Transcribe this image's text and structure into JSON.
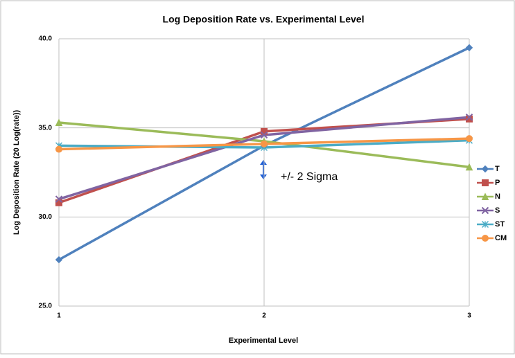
{
  "chart_data": {
    "type": "line",
    "title": "Log Deposition Rate vs. Experimental Level",
    "x_label": "Experimental Level",
    "y_label": "Log Deposition Rate (20 Log(rate))",
    "annotation": "+/- 2 Sigma",
    "x": [
      1,
      2,
      3
    ],
    "xlim": [
      1,
      3
    ],
    "xticks": [
      1,
      2,
      3
    ],
    "ylim": [
      25,
      40
    ],
    "yticks": [
      {
        "value": 25,
        "label": "25.0"
      },
      {
        "value": 30,
        "label": "30.0"
      },
      {
        "value": 35,
        "label": "35.0"
      },
      {
        "value": 40,
        "label": "40.0"
      }
    ],
    "grid": true,
    "legend": "right",
    "series": [
      {
        "name": "T",
        "color": "#4f81bd",
        "marker": "diamond",
        "values": [
          27.6,
          34.0,
          39.5
        ]
      },
      {
        "name": "P",
        "color": "#c0504d",
        "marker": "square",
        "values": [
          30.8,
          34.8,
          35.5
        ]
      },
      {
        "name": "N",
        "color": "#9bbb59",
        "marker": "triangle",
        "values": [
          35.3,
          34.25,
          32.8
        ]
      },
      {
        "name": "S",
        "color": "#8064a2",
        "marker": "x",
        "values": [
          31.0,
          34.6,
          35.6
        ]
      },
      {
        "name": "ST",
        "color": "#4bacc6",
        "marker": "star",
        "values": [
          34.0,
          33.9,
          34.3
        ]
      },
      {
        "name": "CM",
        "color": "#f79646",
        "marker": "circle",
        "values": [
          33.8,
          34.1,
          34.4
        ]
      }
    ]
  }
}
